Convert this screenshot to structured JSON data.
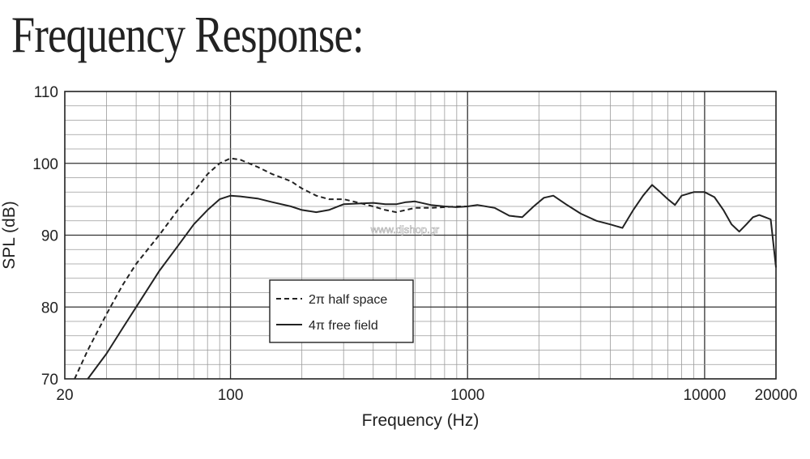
{
  "title": "Frequency Response:",
  "watermark": "www.djshop.gr",
  "chart_data": {
    "type": "line",
    "xlabel": "Frequency (Hz)",
    "ylabel": "SPL (dB)",
    "x_scale": "log",
    "xlim": [
      20,
      20000
    ],
    "ylim": [
      70,
      110
    ],
    "x_ticks": [
      20,
      100,
      1000,
      10000,
      20000
    ],
    "x_tick_labels": [
      "20",
      "100",
      "1000",
      "10000",
      "20000"
    ],
    "y_ticks": [
      70,
      80,
      90,
      100,
      110
    ],
    "y_tick_labels": [
      "70",
      "80",
      "90",
      "100",
      "110"
    ],
    "grid": true,
    "legend_position": "center-left",
    "series": [
      {
        "name": "2π half space",
        "style": "dashed",
        "color": "#222222",
        "x": [
          22,
          25,
          30,
          35,
          40,
          50,
          60,
          70,
          80,
          90,
          100,
          110,
          130,
          150,
          180,
          200,
          230,
          260,
          300,
          350,
          400,
          450,
          500,
          550,
          600,
          700,
          800,
          900,
          1000
        ],
        "y": [
          70,
          74,
          79,
          83,
          86,
          90,
          93.5,
          96,
          98.5,
          100,
          100.7,
          100.5,
          99.5,
          98.5,
          97.5,
          96.5,
          95.5,
          95,
          95,
          94.5,
          94,
          93.5,
          93.2,
          93.5,
          93.8,
          93.8,
          93.9,
          94,
          94
        ]
      },
      {
        "name": "4π free field",
        "style": "solid",
        "color": "#222222",
        "x": [
          25,
          30,
          35,
          40,
          50,
          60,
          70,
          80,
          90,
          100,
          110,
          130,
          150,
          180,
          200,
          230,
          260,
          300,
          350,
          400,
          450,
          500,
          550,
          600,
          700,
          800,
          900,
          1000,
          1100,
          1300,
          1500,
          1700,
          1900,
          2100,
          2300,
          2600,
          3000,
          3500,
          4000,
          4500,
          5000,
          5500,
          6000,
          6500,
          7000,
          7500,
          8000,
          9000,
          10000,
          11000,
          12000,
          13000,
          14000,
          15000,
          16000,
          17000,
          18000,
          19000,
          20000
        ],
        "y": [
          70,
          73.5,
          77,
          80,
          85,
          88.5,
          91.5,
          93.5,
          95,
          95.5,
          95.4,
          95.1,
          94.6,
          94,
          93.5,
          93.2,
          93.5,
          94.3,
          94.4,
          94.5,
          94.3,
          94.3,
          94.6,
          94.7,
          94.2,
          94,
          93.9,
          94,
          94.2,
          93.8,
          92.7,
          92.5,
          94,
          95.2,
          95.5,
          94.3,
          93,
          92,
          91.5,
          91,
          93.5,
          95.5,
          97,
          96,
          95,
          94.2,
          95.5,
          96,
          96,
          95.3,
          93.5,
          91.5,
          90.5,
          91.5,
          92.5,
          92.8,
          92.5,
          92.2,
          85.5
        ]
      }
    ]
  }
}
